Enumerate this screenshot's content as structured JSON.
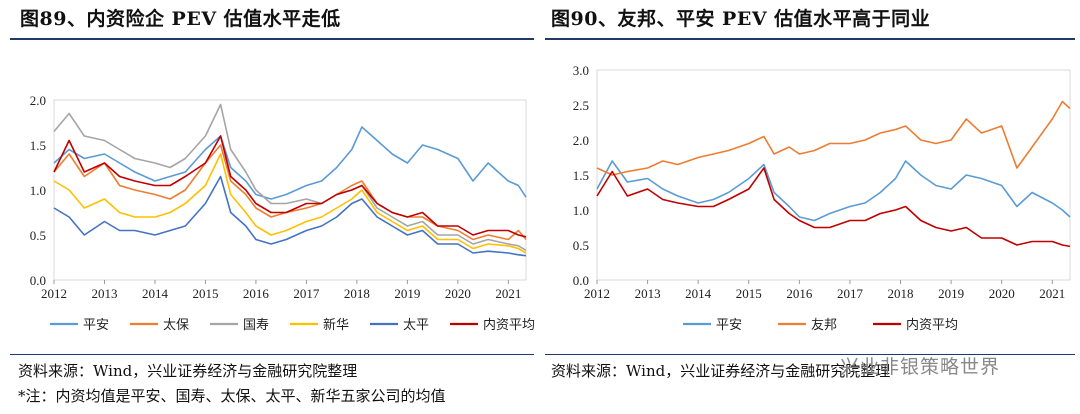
{
  "left": {
    "title": "图89、内资险企 PEV 估值水平走低",
    "source": "资料来源：Wind，兴业证券经济与金融研究院整理",
    "note": "*注：内资均值是平安、国寿、太保、太平、新华五家公司的均值"
  },
  "right": {
    "title": "图90、友邦、平安 PEV 估值水平高于同业",
    "source": "资料来源：Wind，兴业证券经济与金融研究院整理"
  },
  "watermark": "兴业非银策略世界",
  "chart_data": [
    {
      "type": "line",
      "x_ticks": [
        "2012",
        "2013",
        "2014",
        "2015",
        "2016",
        "2017",
        "2018",
        "2019",
        "2020",
        "2021"
      ],
      "x_range": [
        2012,
        2021.35
      ],
      "ylim": [
        0,
        2.0
      ],
      "y_ticks": [
        "0.0",
        "0.5",
        "1.0",
        "1.5",
        "2.0"
      ],
      "legend_position": "bottom",
      "series": [
        {
          "name": "平安",
          "color": "#5b9bd5",
          "x": [
            2012,
            2012.3,
            2012.6,
            2013,
            2013.3,
            2013.6,
            2014,
            2014.3,
            2014.6,
            2015,
            2015.3,
            2015.5,
            2015.8,
            2016,
            2016.3,
            2016.6,
            2017,
            2017.3,
            2017.6,
            2017.9,
            2018.1,
            2018.4,
            2018.7,
            2019,
            2019.3,
            2019.6,
            2020,
            2020.3,
            2020.6,
            2021,
            2021.2,
            2021.35
          ],
          "y": [
            1.3,
            1.45,
            1.35,
            1.4,
            1.3,
            1.2,
            1.1,
            1.15,
            1.2,
            1.45,
            1.6,
            1.25,
            1.1,
            0.95,
            0.9,
            0.95,
            1.05,
            1.1,
            1.25,
            1.45,
            1.7,
            1.55,
            1.4,
            1.3,
            1.5,
            1.45,
            1.35,
            1.1,
            1.3,
            1.1,
            1.05,
            0.92
          ]
        },
        {
          "name": "太保",
          "color": "#ed7d31",
          "x": [
            2012,
            2012.3,
            2012.6,
            2013,
            2013.3,
            2013.6,
            2014,
            2014.3,
            2014.6,
            2015,
            2015.3,
            2015.5,
            2015.8,
            2016,
            2016.3,
            2016.6,
            2017,
            2017.3,
            2017.6,
            2017.9,
            2018.1,
            2018.4,
            2018.7,
            2019,
            2019.3,
            2019.6,
            2020,
            2020.3,
            2020.6,
            2021,
            2021.2,
            2021.35
          ],
          "y": [
            1.2,
            1.4,
            1.15,
            1.3,
            1.05,
            1.0,
            0.95,
            0.9,
            1.0,
            1.3,
            1.5,
            1.1,
            0.95,
            0.8,
            0.7,
            0.75,
            0.8,
            0.85,
            0.95,
            1.05,
            1.1,
            0.85,
            0.75,
            0.7,
            0.7,
            0.6,
            0.55,
            0.45,
            0.5,
            0.45,
            0.55,
            0.45
          ]
        },
        {
          "name": "国寿",
          "color": "#a5a5a5",
          "x": [
            2012,
            2012.3,
            2012.6,
            2013,
            2013.3,
            2013.6,
            2014,
            2014.3,
            2014.6,
            2015,
            2015.3,
            2015.5,
            2015.8,
            2016,
            2016.3,
            2016.6,
            2017,
            2017.3,
            2017.6,
            2017.9,
            2018.1,
            2018.4,
            2018.7,
            2019,
            2019.3,
            2019.6,
            2020,
            2020.3,
            2020.6,
            2021,
            2021.2,
            2021.35
          ],
          "y": [
            1.65,
            1.85,
            1.6,
            1.55,
            1.45,
            1.35,
            1.3,
            1.25,
            1.35,
            1.6,
            1.95,
            1.45,
            1.2,
            1.0,
            0.85,
            0.85,
            0.9,
            0.85,
            0.95,
            1.0,
            1.05,
            0.8,
            0.7,
            0.6,
            0.65,
            0.5,
            0.5,
            0.4,
            0.45,
            0.4,
            0.38,
            0.33
          ]
        },
        {
          "name": "新华",
          "color": "#ffc000",
          "x": [
            2012,
            2012.3,
            2012.6,
            2013,
            2013.3,
            2013.6,
            2014,
            2014.3,
            2014.6,
            2015,
            2015.3,
            2015.5,
            2015.8,
            2016,
            2016.3,
            2016.6,
            2017,
            2017.3,
            2017.6,
            2017.9,
            2018.1,
            2018.4,
            2018.7,
            2019,
            2019.3,
            2019.6,
            2020,
            2020.3,
            2020.6,
            2021,
            2021.2,
            2021.35
          ],
          "y": [
            1.1,
            1.0,
            0.8,
            0.9,
            0.75,
            0.7,
            0.7,
            0.75,
            0.85,
            1.05,
            1.4,
            0.95,
            0.75,
            0.6,
            0.5,
            0.55,
            0.65,
            0.7,
            0.8,
            0.9,
            1.0,
            0.75,
            0.65,
            0.55,
            0.6,
            0.45,
            0.45,
            0.35,
            0.4,
            0.38,
            0.35,
            0.3
          ]
        },
        {
          "name": "太平",
          "color": "#4472c4",
          "x": [
            2012,
            2012.3,
            2012.6,
            2013,
            2013.3,
            2013.6,
            2014,
            2014.3,
            2014.6,
            2015,
            2015.3,
            2015.5,
            2015.8,
            2016,
            2016.3,
            2016.6,
            2017,
            2017.3,
            2017.6,
            2017.9,
            2018.1,
            2018.4,
            2018.7,
            2019,
            2019.3,
            2019.6,
            2020,
            2020.3,
            2020.6,
            2021,
            2021.2,
            2021.35
          ],
          "y": [
            0.8,
            0.7,
            0.5,
            0.65,
            0.55,
            0.55,
            0.5,
            0.55,
            0.6,
            0.85,
            1.15,
            0.75,
            0.6,
            0.45,
            0.4,
            0.45,
            0.55,
            0.6,
            0.7,
            0.85,
            0.9,
            0.7,
            0.6,
            0.5,
            0.55,
            0.4,
            0.4,
            0.3,
            0.32,
            0.3,
            0.28,
            0.27
          ]
        },
        {
          "name": "内资平均",
          "color": "#c00000",
          "x": [
            2012,
            2012.3,
            2012.6,
            2013,
            2013.3,
            2013.6,
            2014,
            2014.3,
            2014.6,
            2015,
            2015.3,
            2015.5,
            2015.8,
            2016,
            2016.3,
            2016.6,
            2017,
            2017.3,
            2017.6,
            2017.9,
            2018.1,
            2018.4,
            2018.7,
            2019,
            2019.3,
            2019.6,
            2020,
            2020.3,
            2020.6,
            2021,
            2021.2,
            2021.35
          ],
          "y": [
            1.2,
            1.55,
            1.2,
            1.3,
            1.15,
            1.1,
            1.05,
            1.05,
            1.15,
            1.3,
            1.6,
            1.15,
            1.0,
            0.85,
            0.75,
            0.75,
            0.85,
            0.85,
            0.95,
            1.0,
            1.05,
            0.85,
            0.75,
            0.7,
            0.75,
            0.6,
            0.6,
            0.5,
            0.55,
            0.55,
            0.5,
            0.48
          ]
        }
      ]
    },
    {
      "type": "line",
      "x_ticks": [
        "2012",
        "2013",
        "2014",
        "2015",
        "2016",
        "2017",
        "2018",
        "2019",
        "2020",
        "2021"
      ],
      "x_range": [
        2012,
        2021.35
      ],
      "ylim": [
        0,
        3.0
      ],
      "y_ticks": [
        "0.0",
        "0.5",
        "1.0",
        "1.5",
        "2.0",
        "2.5",
        "3.0"
      ],
      "legend_position": "bottom",
      "series": [
        {
          "name": "平安",
          "color": "#5b9bd5",
          "x": [
            2012,
            2012.3,
            2012.6,
            2013,
            2013.3,
            2013.6,
            2014,
            2014.3,
            2014.6,
            2015,
            2015.3,
            2015.5,
            2015.8,
            2016,
            2016.3,
            2016.6,
            2017,
            2017.3,
            2017.6,
            2017.9,
            2018.1,
            2018.4,
            2018.7,
            2019,
            2019.3,
            2019.6,
            2020,
            2020.3,
            2020.6,
            2021,
            2021.2,
            2021.35
          ],
          "y": [
            1.3,
            1.7,
            1.4,
            1.45,
            1.3,
            1.2,
            1.1,
            1.15,
            1.25,
            1.45,
            1.65,
            1.25,
            1.05,
            0.9,
            0.85,
            0.95,
            1.05,
            1.1,
            1.25,
            1.45,
            1.7,
            1.5,
            1.35,
            1.3,
            1.5,
            1.45,
            1.35,
            1.05,
            1.25,
            1.1,
            1.0,
            0.9
          ]
        },
        {
          "name": "友邦",
          "color": "#ed7d31",
          "x": [
            2012,
            2012.3,
            2012.6,
            2013,
            2013.3,
            2013.6,
            2014,
            2014.3,
            2014.6,
            2015,
            2015.3,
            2015.5,
            2015.8,
            2016,
            2016.3,
            2016.6,
            2017,
            2017.3,
            2017.6,
            2017.9,
            2018.1,
            2018.4,
            2018.7,
            2019,
            2019.3,
            2019.6,
            2020,
            2020.3,
            2020.6,
            2021,
            2021.2,
            2021.35
          ],
          "y": [
            1.6,
            1.5,
            1.55,
            1.6,
            1.7,
            1.65,
            1.75,
            1.8,
            1.85,
            1.95,
            2.05,
            1.8,
            1.9,
            1.8,
            1.85,
            1.95,
            1.95,
            2.0,
            2.1,
            2.15,
            2.2,
            2.0,
            1.95,
            2.0,
            2.3,
            2.1,
            2.2,
            1.6,
            1.9,
            2.3,
            2.55,
            2.45
          ]
        },
        {
          "name": "内资平均",
          "color": "#c00000",
          "x": [
            2012,
            2012.3,
            2012.6,
            2013,
            2013.3,
            2013.6,
            2014,
            2014.3,
            2014.6,
            2015,
            2015.3,
            2015.5,
            2015.8,
            2016,
            2016.3,
            2016.6,
            2017,
            2017.3,
            2017.6,
            2017.9,
            2018.1,
            2018.4,
            2018.7,
            2019,
            2019.3,
            2019.6,
            2020,
            2020.3,
            2020.6,
            2021,
            2021.2,
            2021.35
          ],
          "y": [
            1.2,
            1.55,
            1.2,
            1.3,
            1.15,
            1.1,
            1.05,
            1.05,
            1.15,
            1.3,
            1.6,
            1.15,
            0.95,
            0.85,
            0.75,
            0.75,
            0.85,
            0.85,
            0.95,
            1.0,
            1.05,
            0.85,
            0.75,
            0.7,
            0.75,
            0.6,
            0.6,
            0.5,
            0.55,
            0.55,
            0.5,
            0.48
          ]
        }
      ]
    }
  ]
}
